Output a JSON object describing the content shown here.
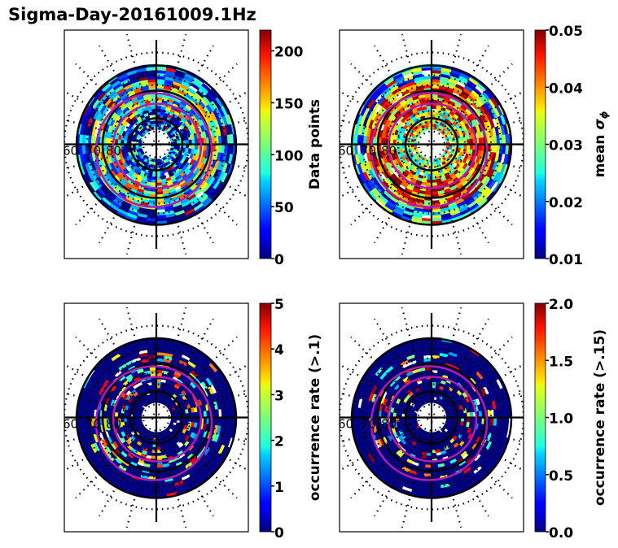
{
  "figure": {
    "title": "Sigma-Day-20161009.1Hz"
  },
  "chart_data": [
    {
      "type": "heatmap",
      "projection": "polar (geomagnetic latitude vs MLT)",
      "title": "",
      "colorbar_label": "Data points",
      "colormap": "jet",
      "vmin": 0,
      "vmax": 220,
      "colorbar_ticks": [
        "0",
        "50",
        "100",
        "150",
        "200"
      ],
      "colorbar_tick_values": [
        0,
        50,
        100,
        150,
        200
      ],
      "lat_labels": [
        "60",
        "70",
        "80"
      ],
      "lat_range": [
        50,
        90
      ],
      "pattern": {
        "outer_level": 0.15,
        "mid_level": 0.5,
        "inner_level": 0.2,
        "noise": 0.35,
        "fill": 0.97
      }
    },
    {
      "type": "heatmap",
      "projection": "polar (geomagnetic latitude vs MLT)",
      "title": "",
      "colorbar_label": "mean σφ",
      "colormap": "jet",
      "vmin": 0.01,
      "vmax": 0.05,
      "colorbar_ticks": [
        "0.01",
        "0.02",
        "0.03",
        "0.04",
        "0.05"
      ],
      "colorbar_tick_values": [
        0.01,
        0.02,
        0.03,
        0.04,
        0.05
      ],
      "lat_labels": [
        "60",
        "70",
        "80"
      ],
      "lat_range": [
        50,
        90
      ],
      "pattern": {
        "outer_level": 0.33,
        "mid_level": 0.75,
        "inner_level": 0.55,
        "noise": 0.3,
        "fill": 0.95
      }
    },
    {
      "type": "heatmap",
      "projection": "polar (geomagnetic latitude vs MLT)",
      "title": "",
      "colorbar_label": "occurrence rate (>.1)",
      "colormap": "jet",
      "vmin": 0,
      "vmax": 5,
      "colorbar_ticks": [
        "0",
        "1",
        "2",
        "3",
        "4",
        "5"
      ],
      "colorbar_tick_values": [
        0,
        1,
        2,
        3,
        4,
        5
      ],
      "lat_labels": [
        "60",
        "70",
        "80"
      ],
      "lat_range": [
        50,
        90
      ],
      "pattern": {
        "outer_level": 0.0,
        "mid_level": 0.0,
        "inner_level": 0.0,
        "noise": 0.0,
        "fill": 0.97,
        "sparse_hot_fraction": 0.14
      }
    },
    {
      "type": "heatmap",
      "projection": "polar (geomagnetic latitude vs MLT)",
      "title": "",
      "colorbar_label": "occurrence rate (>.15)",
      "colormap": "jet",
      "vmin": 0.0,
      "vmax": 2.0,
      "colorbar_ticks": [
        "0.0",
        "0.5",
        "1.0",
        "1.5",
        "2.0"
      ],
      "colorbar_tick_values": [
        0.0,
        0.5,
        1.0,
        1.5,
        2.0
      ],
      "lat_labels": [
        "60",
        "70",
        "80"
      ],
      "lat_range": [
        50,
        90
      ],
      "pattern": {
        "outer_level": 0.0,
        "mid_level": 0.0,
        "inner_level": 0.0,
        "noise": 0.0,
        "fill": 0.97,
        "sparse_hot_fraction": 0.1
      }
    }
  ],
  "colors": {
    "grid_circle": "#000000",
    "auroral_oval": "#b01cb0",
    "frame": "#000000"
  }
}
